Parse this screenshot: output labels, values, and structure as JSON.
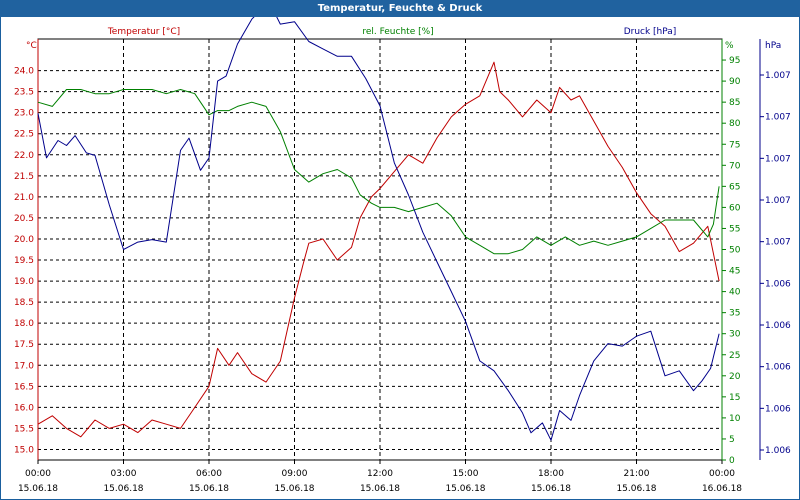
{
  "window": {
    "title": "Temperatur, Feuchte & Druck"
  },
  "colors": {
    "temperature": "#c00000",
    "humidity": "#008000",
    "pressure": "#00008b",
    "grid": "#000000",
    "titlebar": "#20629f"
  },
  "chart_data": {
    "type": "line",
    "title": "Temperatur, Feuchte & Druck",
    "xlabel": "",
    "x_unit": "hours since 15.06.18 00:00",
    "x_range": [
      0,
      24
    ],
    "x_ticks": [
      {
        "x": 0,
        "time": "00:00",
        "date": "15.06.18"
      },
      {
        "x": 3,
        "time": "03:00",
        "date": "15.06.18"
      },
      {
        "x": 6,
        "time": "06:00",
        "date": "15.06.18"
      },
      {
        "x": 9,
        "time": "09:00",
        "date": "15.06.18"
      },
      {
        "x": 12,
        "time": "12:00",
        "date": "15.06.18"
      },
      {
        "x": 15,
        "time": "15:00",
        "date": "15.06.18"
      },
      {
        "x": 18,
        "time": "18:00",
        "date": "15.06.18"
      },
      {
        "x": 21,
        "time": "21:00",
        "date": "15.06.18"
      },
      {
        "x": 24,
        "time": "00:00",
        "date": "16.06.18"
      }
    ],
    "axes": {
      "temperature": {
        "label": "Temperatur [°C]",
        "unit": "°C",
        "range": [
          14.75,
          24.75
        ],
        "ticks": [
          15.0,
          15.5,
          16.0,
          16.5,
          17.0,
          17.5,
          18.0,
          18.5,
          19.0,
          19.5,
          20.0,
          20.5,
          21.0,
          21.5,
          22.0,
          22.5,
          23.0,
          23.5,
          24.0
        ]
      },
      "humidity": {
        "label": "rel. Feuchte [%]",
        "unit": "%",
        "range": [
          0,
          100
        ],
        "ticks": [
          0,
          5,
          10,
          15,
          20,
          25,
          30,
          35,
          40,
          45,
          50,
          55,
          60,
          65,
          70,
          75,
          80,
          85,
          90,
          95
        ]
      },
      "pressure": {
        "label": "Druck [hPa]",
        "unit": "hPa",
        "range": [
          1005.7,
          1007.4
        ],
        "tick_labels": [
          "1.007",
          "1.007",
          "1.007",
          "1.007",
          "1.007",
          "1.006",
          "1.006",
          "1.006",
          "1.006",
          "1.006"
        ]
      }
    },
    "series": [
      {
        "name": "Temperatur [°C]",
        "axis": "temperature",
        "x": [
          0,
          0.5,
          1,
          1.5,
          2,
          2.5,
          3,
          3.5,
          4,
          4.5,
          5,
          5.5,
          6,
          6.3,
          6.7,
          7,
          7.5,
          8,
          8.5,
          9,
          9.3,
          9.5,
          10,
          10.5,
          11,
          11.3,
          11.7,
          12,
          12.5,
          13,
          13.5,
          14,
          14.5,
          15,
          15.5,
          16,
          16.2,
          16.5,
          17,
          17.5,
          18,
          18.3,
          18.7,
          19,
          19.5,
          20,
          20.5,
          21,
          21.5,
          22,
          22.5,
          23,
          23.5,
          23.9
        ],
        "values": [
          15.6,
          15.8,
          15.5,
          15.3,
          15.7,
          15.5,
          15.6,
          15.4,
          15.7,
          15.6,
          15.5,
          16.0,
          16.5,
          17.4,
          17.0,
          17.3,
          16.8,
          16.6,
          17.1,
          18.6,
          19.4,
          19.9,
          20.0,
          19.5,
          19.8,
          20.5,
          21.0,
          21.2,
          21.6,
          22.0,
          21.8,
          22.4,
          22.9,
          23.2,
          23.4,
          24.2,
          23.5,
          23.3,
          22.9,
          23.3,
          23.0,
          23.6,
          23.3,
          23.4,
          22.8,
          22.2,
          21.7,
          21.1,
          20.6,
          20.3,
          19.7,
          19.9,
          20.3,
          19.0
        ]
      },
      {
        "name": "rel. Feuchte [%]",
        "axis": "humidity",
        "x": [
          0,
          0.5,
          1,
          1.5,
          2,
          2.5,
          3,
          3.5,
          4,
          4.5,
          5,
          5.5,
          6,
          6.3,
          6.7,
          7,
          7.5,
          8,
          8.5,
          9,
          9.5,
          10,
          10.5,
          11,
          11.3,
          11.7,
          12,
          12.5,
          13,
          13.5,
          14,
          14.5,
          15,
          15.5,
          16,
          16.5,
          17,
          17.5,
          18,
          18.5,
          19,
          19.5,
          20,
          20.5,
          21,
          21.5,
          22,
          22.5,
          23,
          23.5,
          23.7,
          23.9
        ],
        "values": [
          85,
          84,
          88,
          88,
          87,
          87,
          88,
          88,
          88,
          87,
          88,
          87,
          82,
          83,
          83,
          84,
          85,
          84,
          78,
          69,
          66,
          68,
          69,
          67,
          63,
          61,
          60,
          60,
          59,
          60,
          61,
          58,
          53,
          51,
          49,
          49,
          50,
          53,
          51,
          53,
          51,
          52,
          51,
          52,
          53,
          55,
          57,
          57,
          57,
          53,
          56,
          65
        ]
      },
      {
        "name": "Druck [hPa]",
        "axis": "pressure",
        "x": [
          0,
          0.3,
          0.7,
          1,
          1.3,
          1.7,
          2,
          2.5,
          3,
          3.5,
          4,
          4.5,
          5,
          5.3,
          5.7,
          6,
          6.3,
          6.6,
          7,
          7.5,
          8,
          8.2,
          8.5,
          9,
          9.5,
          10,
          10.5,
          11,
          11.5,
          12,
          12.5,
          13,
          13.5,
          14,
          14.5,
          15,
          15.5,
          16,
          16.5,
          17,
          17.3,
          17.7,
          18,
          18.3,
          18.7,
          19,
          19.5,
          20,
          20.5,
          21,
          21.5,
          22,
          22.5,
          23,
          23.3,
          23.6,
          23.9
        ],
        "values": [
          1007.1,
          1006.92,
          1006.99,
          1006.97,
          1007.01,
          1006.94,
          1006.93,
          1006.73,
          1006.55,
          1006.58,
          1006.59,
          1006.58,
          1006.95,
          1007.0,
          1006.87,
          1006.92,
          1007.23,
          1007.25,
          1007.38,
          1007.48,
          1007.54,
          1007.53,
          1007.46,
          1007.47,
          1007.39,
          1007.36,
          1007.33,
          1007.33,
          1007.24,
          1007.13,
          1006.9,
          1006.77,
          1006.62,
          1006.5,
          1006.38,
          1006.26,
          1006.1,
          1006.06,
          1005.98,
          1005.89,
          1005.81,
          1005.85,
          1005.78,
          1005.9,
          1005.86,
          1005.96,
          1006.1,
          1006.17,
          1006.16,
          1006.2,
          1006.22,
          1006.04,
          1006.06,
          1005.98,
          1006.02,
          1006.07,
          1006.21
        ]
      }
    ]
  }
}
